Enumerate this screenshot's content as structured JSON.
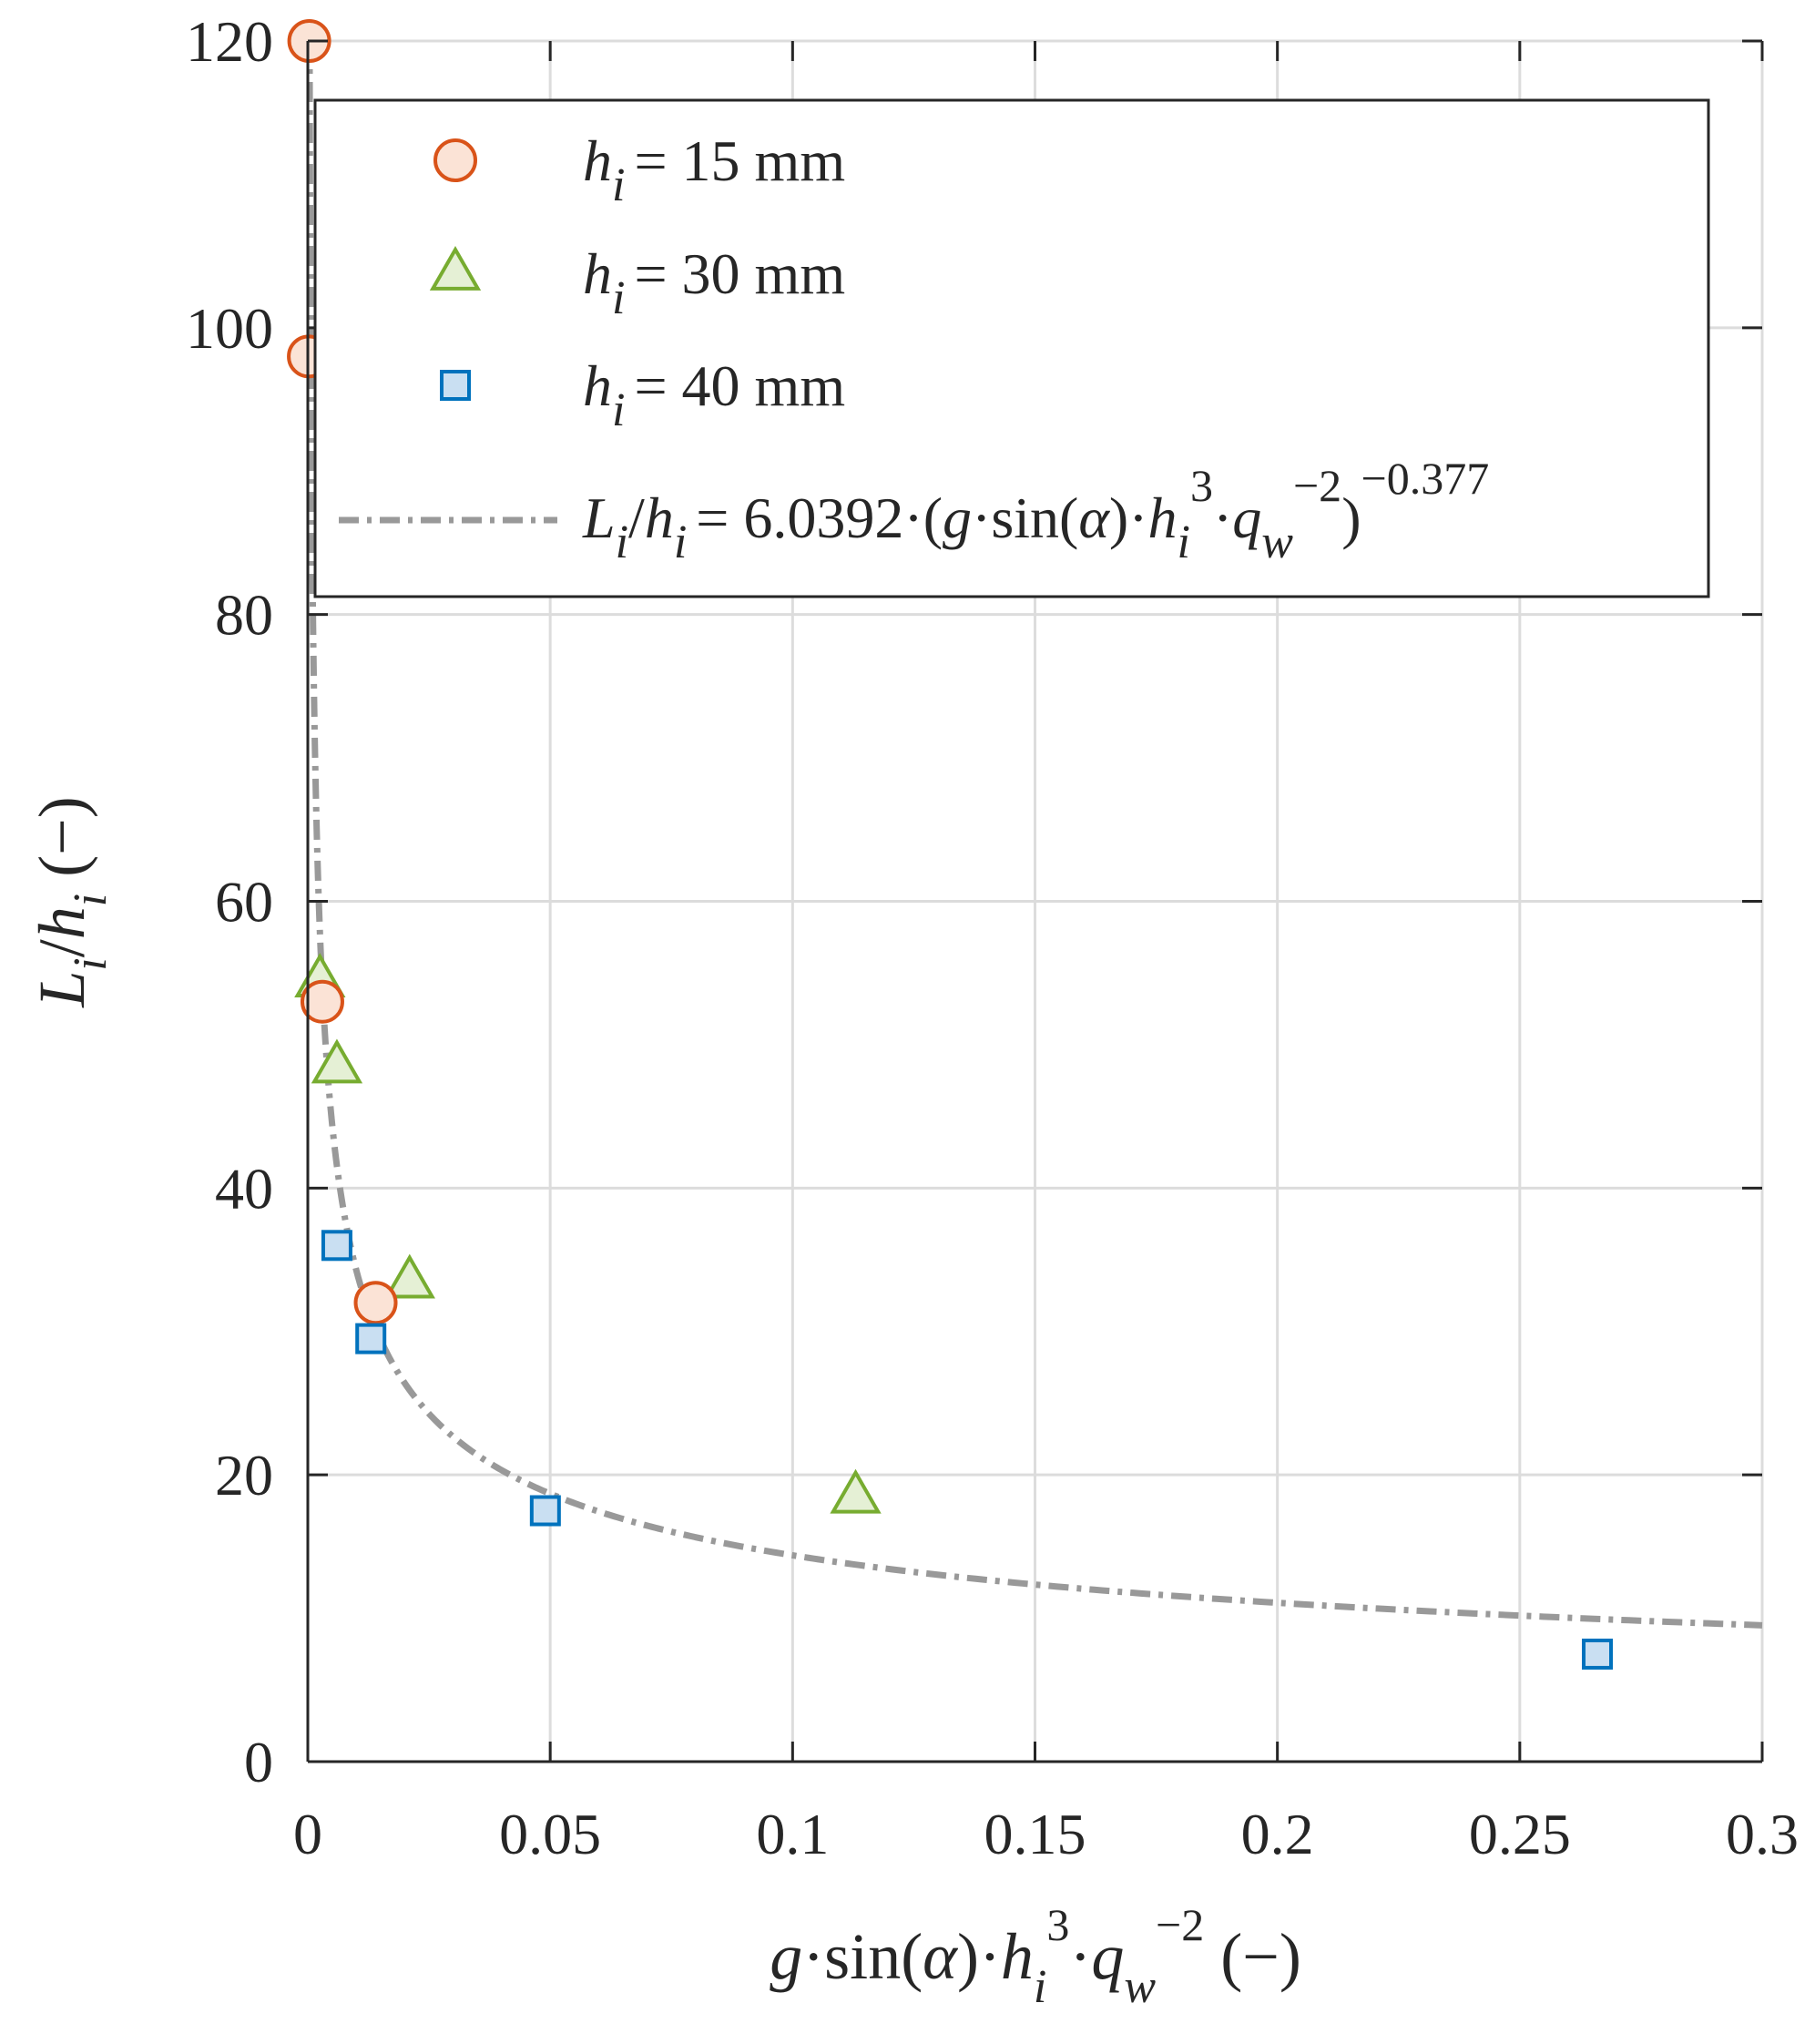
{
  "chart_data": {
    "type": "scatter",
    "title": "",
    "xlabel": "g·sin(α)·h_i^3·q_w^−2 (−)",
    "ylabel": "L_i/h_i (−)",
    "xlim": [
      0,
      0.3
    ],
    "ylim": [
      0,
      120
    ],
    "grid": true,
    "legend_position": "top-right",
    "x_ticks": [
      "0",
      "0.05",
      "0.1",
      "0.15",
      "0.2",
      "0.25",
      "0.3"
    ],
    "y_ticks": [
      "0",
      "20",
      "40",
      "60",
      "80",
      "100",
      "120"
    ],
    "series": [
      {
        "name": "h_i = 15 mm",
        "marker": "circle",
        "color": "#d95319",
        "fill": "#fbe3d6",
        "points": [
          [
            0.0003,
            120
          ],
          [
            0.0002,
            98
          ],
          [
            0.003,
            53
          ],
          [
            0.014,
            32
          ]
        ]
      },
      {
        "name": "h_i = 30 mm",
        "marker": "triangle",
        "color": "#77ac30",
        "fill": "#e5f0d5",
        "points": [
          [
            0.0025,
            54.5
          ],
          [
            0.006,
            48.5
          ],
          [
            0.021,
            33.5
          ],
          [
            0.113,
            18.5
          ]
        ]
      },
      {
        "name": "h_i = 40 mm",
        "marker": "square",
        "color": "#0072bd",
        "fill": "#c9dff2",
        "points": [
          [
            0.006,
            36
          ],
          [
            0.013,
            29.5
          ],
          [
            0.049,
            17.5
          ],
          [
            0.266,
            7.5
          ]
        ]
      }
    ],
    "fit": {
      "name": "L_i/h_i = 6.0392·(g·sin(α)·h_i^3·q_w^−2)^−0.377",
      "coefficient": 6.0392,
      "exponent": -0.377,
      "color": "#999999",
      "style": "dash-dot"
    },
    "legend": {
      "prefix_var": "h",
      "prefix_sub": "i",
      "labels": [
        "= 15 mm",
        "= 30 mm",
        "= 40 mm"
      ],
      "fit_text": {
        "L": "L",
        "i": "i",
        "slash": "/",
        "h": "h",
        "eq": "= 6.0392·(",
        "g": "g",
        "sin": "·sin(",
        "alpha": "α",
        "close": ")·",
        "three": "3",
        "dot": "·",
        "q": "q",
        "w": "w",
        "minus2": "−2",
        "paren": ")",
        "exp": "−0.377"
      }
    },
    "ylabel_parts": {
      "L": "L",
      "i": "i",
      "slash": "/",
      "h": "h",
      "unit": " (−)"
    },
    "xlabel_parts": {
      "g": "g",
      "sin": "·sin(",
      "alpha": "α",
      "close": ")·",
      "h": "h",
      "i": "i",
      "three": "3",
      "dot": "·",
      "q": "q",
      "w": "w",
      "minus2": "−2",
      "unit": " (−)"
    }
  }
}
